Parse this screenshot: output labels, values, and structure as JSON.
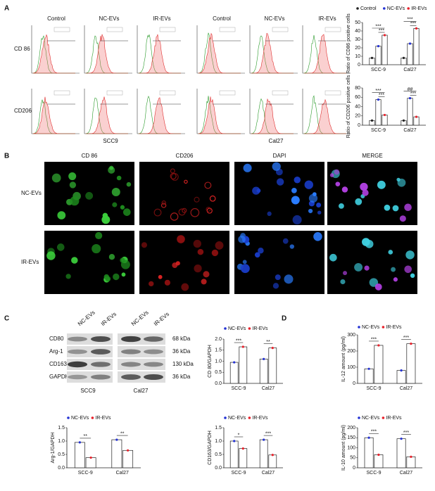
{
  "panel_labels": [
    "A",
    "B",
    "C",
    "D"
  ],
  "panel_a": {
    "columns": [
      "Control",
      "NC-EVs",
      "IR-EVs",
      "Control",
      "NC-EVs",
      "IR-EVs"
    ],
    "rows": [
      "CD 86",
      "CD206"
    ],
    "groups": [
      "SCC9",
      "Cal27"
    ]
  },
  "panel_b": {
    "columns": [
      "CD 86",
      "CD206",
      "DAPI",
      "MERGE"
    ],
    "rows": [
      "NC-EVs",
      "IR-EVs"
    ]
  },
  "panel_c_blot": {
    "lanes": [
      "NC-EVs",
      "IR-EVs",
      "NC-EVs",
      "IR-EVs"
    ],
    "proteins": [
      {
        "name": "CD80",
        "size": "68 kDa"
      },
      {
        "name": "Arg-1",
        "size": "36 kDa"
      },
      {
        "name": "CD163",
        "size": "130 kDa"
      },
      {
        "name": "GAPDH",
        "size": "36 kDa"
      }
    ],
    "groups": [
      "SCC9",
      "Cal27"
    ]
  },
  "chart_data": [
    {
      "type": "bar",
      "ylabel": "Ratio of CD86 positive cells",
      "categories": [
        "SCC-9",
        "Cal27"
      ],
      "series": [
        {
          "name": "Control",
          "color": "#222222",
          "values": [
            8,
            8
          ]
        },
        {
          "name": "NC-EVs",
          "color": "#2432d4",
          "values": [
            22,
            25
          ]
        },
        {
          "name": "IR-EVs",
          "color": "#e8212b",
          "values": [
            35,
            43
          ]
        }
      ],
      "ylim": [
        0,
        50
      ],
      "yticks": [
        0,
        10,
        20,
        30,
        40,
        50
      ],
      "legend": "top",
      "annotations": [
        [
          "***",
          "***"
        ],
        [
          "***",
          "***"
        ]
      ]
    },
    {
      "type": "bar",
      "ylabel": "Ratio of CD206 positive cells",
      "categories": [
        "SCC-9",
        "Cal27"
      ],
      "series": [
        {
          "name": "Control",
          "color": "#222222",
          "values": [
            10,
            10
          ]
        },
        {
          "name": "NC-EVs",
          "color": "#2432d4",
          "values": [
            55,
            58
          ]
        },
        {
          "name": "IR-EVs",
          "color": "#e8212b",
          "values": [
            22,
            18
          ]
        }
      ],
      "ylim": [
        0,
        80
      ],
      "yticks": [
        0,
        20,
        40,
        60,
        80
      ],
      "annotations": [
        [
          "***",
          "***"
        ],
        [
          "##",
          "***"
        ]
      ]
    },
    {
      "type": "bar",
      "ylabel": "CD 80/GAPDH",
      "categories": [
        "SCC-9",
        "Cal27"
      ],
      "series": [
        {
          "name": "NC-EVs",
          "color": "#2432d4",
          "values": [
            0.95,
            1.1
          ]
        },
        {
          "name": "IR-EVs",
          "color": "#e8212b",
          "values": [
            1.65,
            1.6
          ]
        }
      ],
      "ylim": [
        0,
        2
      ],
      "yticks": [
        {
          "value": 0,
          "label": "0.0"
        },
        0.5,
        {
          "value": 1,
          "label": "1.0"
        },
        1.5,
        {
          "value": 2,
          "label": "2.0"
        }
      ],
      "legend": "top",
      "annotations": [
        [
          "***"
        ],
        [
          "**"
        ]
      ]
    },
    {
      "type": "bar",
      "ylabel": "Arg-1/GAPDH",
      "categories": [
        "SCC-9",
        "Cal27"
      ],
      "series": [
        {
          "name": "NC-EVs",
          "color": "#2432d4",
          "values": [
            0.95,
            1.05
          ]
        },
        {
          "name": "IR-EVs",
          "color": "#e8212b",
          "values": [
            0.38,
            0.65
          ]
        }
      ],
      "ylim": [
        0,
        1.5
      ],
      "yticks": [
        {
          "value": 0,
          "label": "0.0"
        },
        0.5,
        {
          "value": 1,
          "label": "1.0"
        },
        1.5
      ],
      "legend": "top",
      "annotations": [
        [
          "**"
        ],
        [
          "**"
        ]
      ]
    },
    {
      "type": "bar",
      "ylabel": "CD163/GAPDH",
      "categories": [
        "SCC-9",
        "Cal27"
      ],
      "series": [
        {
          "name": "NC-EVs",
          "color": "#2432d4",
          "values": [
            1.0,
            1.05
          ]
        },
        {
          "name": "IR-EVs",
          "color": "#e8212b",
          "values": [
            0.72,
            0.48
          ]
        }
      ],
      "ylim": [
        0,
        1.5
      ],
      "yticks": [
        {
          "value": 0,
          "label": "0.0"
        },
        0.5,
        {
          "value": 1,
          "label": "1.0"
        },
        1.5
      ],
      "legend": "top",
      "annotations": [
        [
          "*"
        ],
        [
          "***"
        ]
      ]
    },
    {
      "type": "bar",
      "ylabel": "IL-12 amount (pg/ml)",
      "categories": [
        "SCC-9",
        "Cal27"
      ],
      "series": [
        {
          "name": "NC-EVs",
          "color": "#2432d4",
          "values": [
            90,
            80
          ]
        },
        {
          "name": "IR-EVs",
          "color": "#e8212b",
          "values": [
            235,
            245
          ]
        }
      ],
      "ylim": [
        0,
        300
      ],
      "yticks": [
        0,
        100,
        200,
        300
      ],
      "legend": "top",
      "annotations": [
        [
          "***"
        ],
        [
          "***"
        ]
      ]
    },
    {
      "type": "bar",
      "ylabel": "IL-10 amount (pg/ml)",
      "categories": [
        "SCC-9",
        "Cal27"
      ],
      "series": [
        {
          "name": "NC-EVs",
          "color": "#2432d4",
          "values": [
            150,
            145
          ]
        },
        {
          "name": "IR-EVs",
          "color": "#e8212b",
          "values": [
            65,
            55
          ]
        }
      ],
      "ylim": [
        0,
        200
      ],
      "yticks": [
        0,
        50,
        100,
        150,
        200
      ],
      "legend": "top",
      "annotations": [
        [
          "***"
        ],
        [
          "***"
        ]
      ]
    }
  ]
}
